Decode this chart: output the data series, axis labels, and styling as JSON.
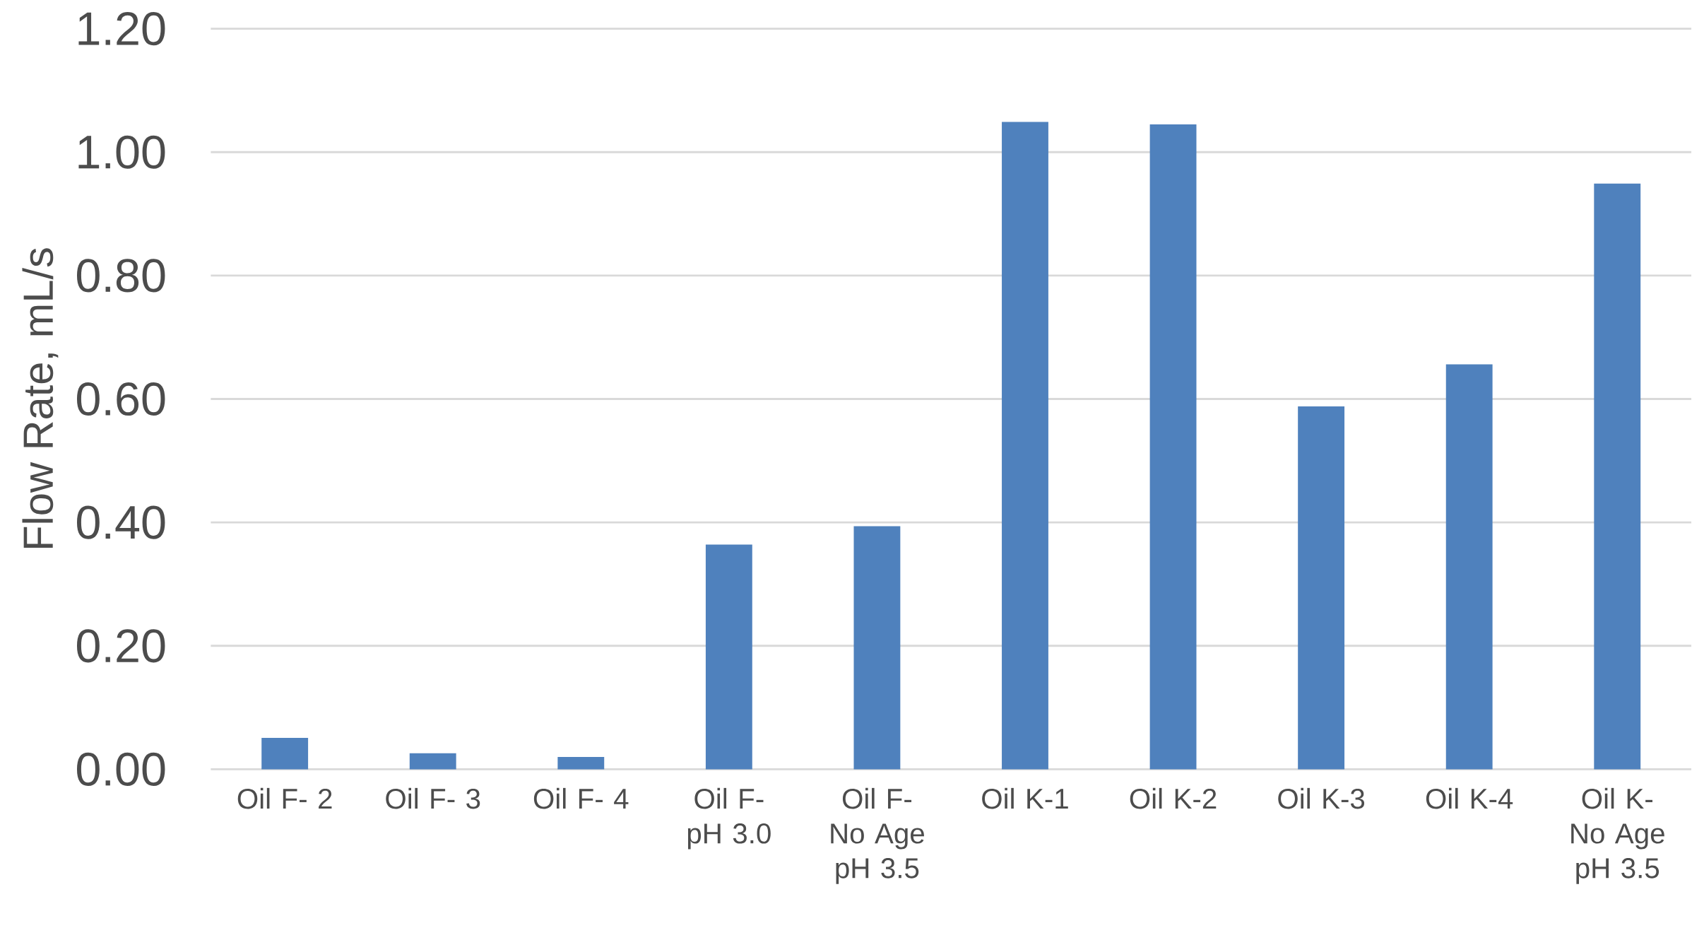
{
  "chart_data": {
    "type": "bar",
    "ylabel": "Flow Rate, mL/s",
    "categories": [
      "Oil F- 2",
      "Oil F- 3",
      "Oil F- 4",
      "Oil F- pH 3.0",
      "Oil F- No Age pH 3.5",
      "Oil K-1",
      "Oil K-2",
      "Oil K-3",
      "Oil K-4",
      "Oil K- No Age pH 3.5"
    ],
    "values": [
      0.051,
      0.026,
      0.02,
      0.364,
      0.394,
      1.049,
      1.045,
      0.588,
      0.656,
      0.949
    ],
    "color": "#4f81bd",
    "ylim": [
      0,
      1.2
    ],
    "yticks": [
      {
        "value": 0,
        "label": "0.00"
      },
      {
        "value": 0.2,
        "label": "0.20"
      },
      {
        "value": 0.4,
        "label": "0.40"
      },
      {
        "value": 0.6,
        "label": "0.60"
      },
      {
        "value": 0.8,
        "label": "0.80"
      },
      {
        "value": 1.0,
        "label": "1.00"
      },
      {
        "value": 1.2,
        "label": "1.20"
      }
    ],
    "grid": "y"
  }
}
